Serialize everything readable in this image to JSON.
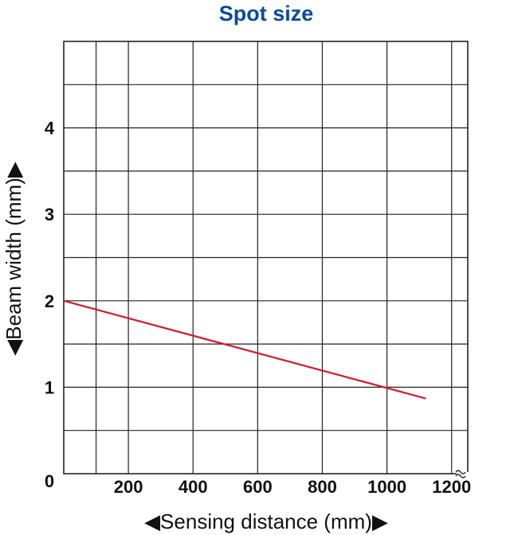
{
  "chart_data": {
    "type": "line",
    "title": "Spot size",
    "xlabel": "◀Sensing distance (mm)▶",
    "ylabel": "◀Beam width (mm)▶",
    "xlim": [
      0,
      1250
    ],
    "ylim": [
      0,
      5
    ],
    "x_ticks": [
      "200",
      "400",
      "600",
      "800",
      "1000",
      "1200"
    ],
    "y_ticks": [
      "1",
      "2",
      "3",
      "4"
    ],
    "origin_label": "0",
    "grid": true,
    "axis_break": "x-right",
    "series": [
      {
        "color": "#d7192b",
        "points": [
          {
            "x": 0,
            "y": 2.0
          },
          {
            "x": 1120,
            "y": 0.87
          }
        ]
      }
    ]
  }
}
